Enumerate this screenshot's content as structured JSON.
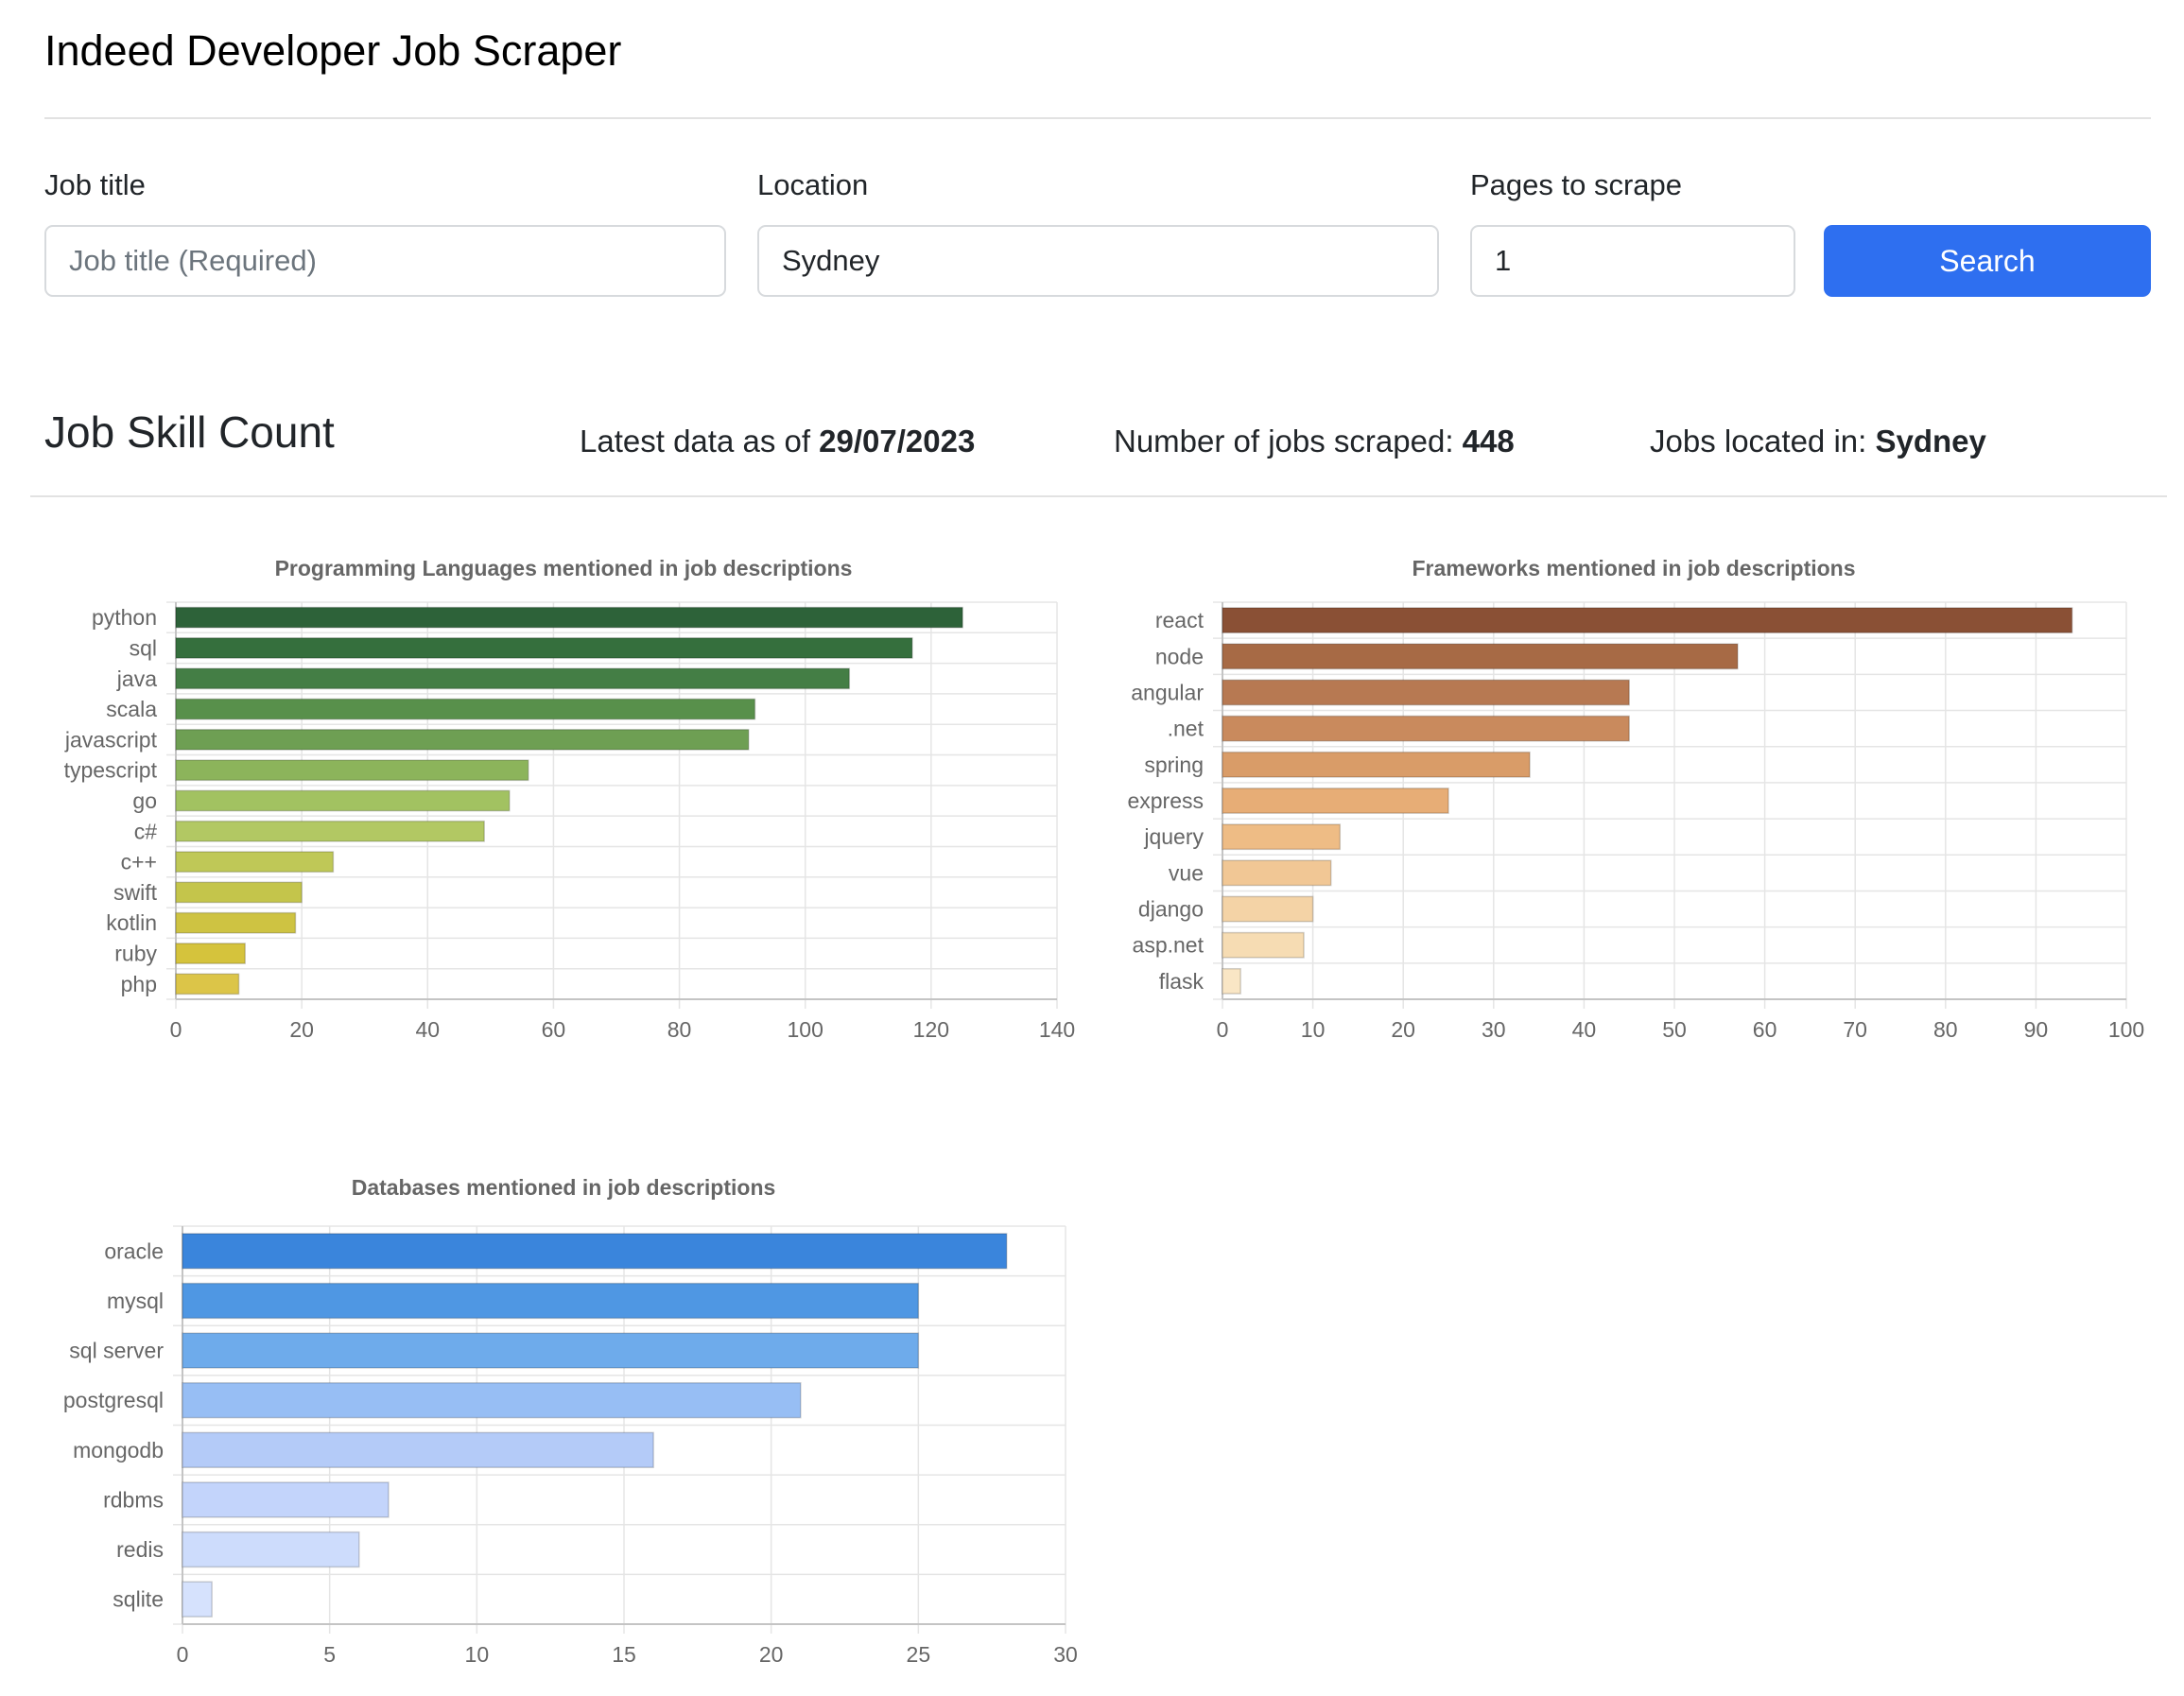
{
  "app": {
    "title": "Indeed Developer Job Scraper"
  },
  "form": {
    "job_title": {
      "label": "Job title",
      "value": "",
      "placeholder": "Job title (Required)"
    },
    "location": {
      "label": "Location",
      "value": "Sydney",
      "placeholder": ""
    },
    "pages": {
      "label": "Pages to scrape",
      "value": "1",
      "placeholder": ""
    },
    "search_label": "Search"
  },
  "summary": {
    "heading": "Job Skill Count",
    "latest_prefix": "Latest data as of ",
    "latest_date": "29/07/2023",
    "jobs_prefix": "Number of jobs scraped: ",
    "jobs_count": "448",
    "location_prefix": "Jobs located in: ",
    "location_value": "Sydney"
  },
  "colors": {
    "primary": "#2e6ff0",
    "text": "#212529",
    "divider": "#e2e2e2",
    "grid": "#e5e5e5",
    "tick": "#666666"
  },
  "chart_data": [
    {
      "id": "languages",
      "type": "bar",
      "orientation": "horizontal",
      "title": "Programming Languages mentioned in job descriptions",
      "categories": [
        "python",
        "sql",
        "java",
        "scala",
        "javascript",
        "typescript",
        "go",
        "c#",
        "c++",
        "swift",
        "kotlin",
        "ruby",
        "php"
      ],
      "values": [
        125,
        117,
        107,
        92,
        91,
        56,
        53,
        49,
        25,
        20,
        19,
        11,
        10
      ],
      "xlim": [
        0,
        140
      ],
      "xticks": [
        0,
        20,
        40,
        60,
        80,
        100,
        120,
        140
      ],
      "grid": true,
      "colors": [
        "#2d6239",
        "#356f3d",
        "#447e45",
        "#58904b",
        "#6e9f53",
        "#8cb45b",
        "#a2c261",
        "#b2c863",
        "#bfc857",
        "#c4c54b",
        "#cec342",
        "#d5c33c",
        "#dcc548"
      ]
    },
    {
      "id": "frameworks",
      "type": "bar",
      "orientation": "horizontal",
      "title": "Frameworks mentioned in job descriptions",
      "categories": [
        "react",
        "node",
        "angular",
        ".net",
        "spring",
        "express",
        "jquery",
        "vue",
        "django",
        "asp.net",
        "flask"
      ],
      "values": [
        94,
        57,
        45,
        45,
        34,
        25,
        13,
        12,
        10,
        9,
        2
      ],
      "xlim": [
        0,
        100
      ],
      "xticks": [
        0,
        10,
        20,
        30,
        40,
        50,
        60,
        70,
        80,
        90,
        100
      ],
      "grid": true,
      "colors": [
        "#8a5035",
        "#a76a45",
        "#b77952",
        "#c98a5d",
        "#d99c68",
        "#e7ad76",
        "#eebc85",
        "#f1c795",
        "#f4d3a6",
        "#f6dcb3",
        "#f9e6c5"
      ]
    },
    {
      "id": "databases",
      "type": "bar",
      "orientation": "horizontal",
      "title": "Databases mentioned in job descriptions",
      "categories": [
        "oracle",
        "mysql",
        "sql server",
        "postgresql",
        "mongodb",
        "rdbms",
        "redis",
        "sqlite"
      ],
      "values": [
        28,
        25,
        25,
        21,
        16,
        7,
        6,
        1
      ],
      "xlim": [
        0,
        30
      ],
      "xticks": [
        0,
        5,
        10,
        15,
        20,
        25,
        30
      ],
      "grid": true,
      "colors": [
        "#3a85dc",
        "#4f97e3",
        "#6eabeb",
        "#97bef4",
        "#b4cbf8",
        "#c3d4fb",
        "#cddcfc",
        "#d6e2fd"
      ]
    }
  ]
}
